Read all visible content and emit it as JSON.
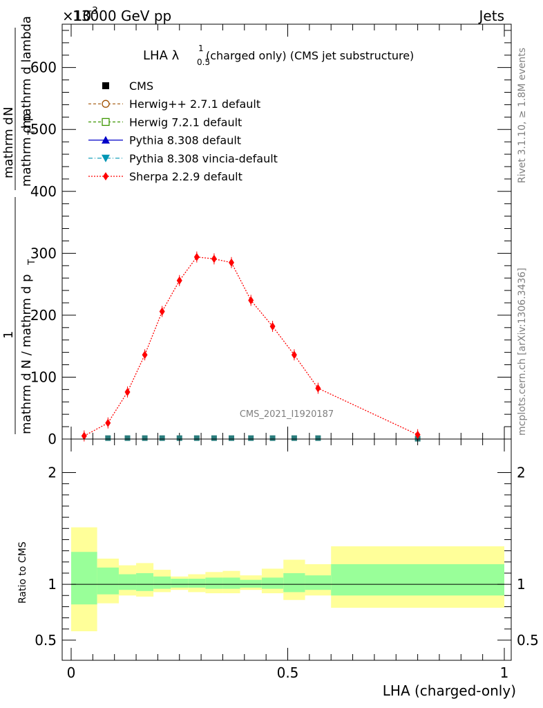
{
  "header": {
    "left": "13000 GeV pp",
    "right": "Jets",
    "exponent": "×10",
    "exponent_power": "-3"
  },
  "side_text": {
    "rivet": "Rivet 3.1.10, ≥ 1.8M events",
    "mcplots": "mcplots.cern.ch [arXiv:1306.3436]"
  },
  "watermark": "CMS_2021_I1920187",
  "colors": {
    "cms": "#000000",
    "herwig_pp": "#a05000",
    "herwig7": "#3c9600",
    "pythia": "#0000c8",
    "vincia": "#0096b4",
    "sherpa": "#ff0000",
    "band_stat": "#99ff99",
    "band_total": "#ffff99"
  },
  "chart_data": [
    {
      "type": "line",
      "title": "LHA λ",
      "title_super": "1",
      "title_sub": "0.5",
      "title_rest": " (charged only) (CMS jet substructure)",
      "xlabel": "LHA (charged-only)",
      "ylabel_frac_one": "1",
      "ylabel_denominator": "mathrm d N / mathrm d p",
      "ylabel_denominator_sub": "T",
      "ylabel_numerator_top": "mathrm d",
      "ylabel_numerator_N": "N",
      "ylabel_numerator_mid": "mathrm d p",
      "ylabel_numerator_T": "T",
      "ylabel_numerator_end": " mathrm d lambda",
      "xlim": [
        0,
        1
      ],
      "ylim": [
        0,
        670
      ],
      "y_scale_note": "values in units of 1e-3",
      "y_ticks": [
        "0",
        "100",
        "200",
        "300",
        "400",
        "500",
        "600"
      ],
      "x_ticks": [
        "0",
        "0.5",
        "1"
      ],
      "legend_position": "top-left",
      "legend": [
        {
          "name": "CMS",
          "marker": "square-filled",
          "color": "#000000"
        },
        {
          "name": "Herwig++ 2.7.1 default",
          "marker": "circle-open",
          "color": "#a05000"
        },
        {
          "name": "Herwig 7.2.1 default",
          "marker": "square-open",
          "color": "#3c9600"
        },
        {
          "name": "Pythia 8.308 default",
          "marker": "triangle-up",
          "color": "#0000c8"
        },
        {
          "name": "Pythia 8.308 vincia-default",
          "marker": "triangle-down",
          "color": "#0096b4"
        },
        {
          "name": "Sherpa 2.2.9 default",
          "marker": "diamond",
          "color": "#ff0000"
        }
      ],
      "x": [
        0.03,
        0.085,
        0.13,
        0.17,
        0.21,
        0.25,
        0.29,
        0.33,
        0.37,
        0.415,
        0.465,
        0.515,
        0.57,
        0.8
      ],
      "series": [
        {
          "name": "Sherpa 2.2.9 default",
          "values": [
            5,
            26,
            76,
            136,
            206,
            256,
            294,
            291,
            285,
            224,
            182,
            136,
            82,
            7
          ]
        },
        {
          "name": "CMS",
          "values": [
            0.5,
            1.5,
            1.5,
            1.5,
            1.5,
            1.5,
            1.5,
            1.5,
            1.5,
            1.5,
            1.5,
            1.5,
            1.5,
            0.5
          ]
        }
      ]
    },
    {
      "type": "area",
      "ylabel": "Ratio to CMS",
      "xlabel": "LHA (charged-only)",
      "xlim": [
        0,
        1
      ],
      "ylim": [
        0.32,
        2.3
      ],
      "y_ticks": [
        "0.5",
        "1",
        "2"
      ],
      "x_ticks": [
        "0",
        "0.5",
        "1"
      ],
      "bins": [
        {
          "x0": 0.0,
          "x1": 0.06,
          "total": [
            0.58,
            1.51
          ],
          "stat": [
            0.82,
            1.29
          ]
        },
        {
          "x0": 0.06,
          "x1": 0.11,
          "total": [
            0.83,
            1.23
          ],
          "stat": [
            0.91,
            1.15
          ]
        },
        {
          "x0": 0.11,
          "x1": 0.15,
          "total": [
            0.9,
            1.17
          ],
          "stat": [
            0.95,
            1.09
          ]
        },
        {
          "x0": 0.15,
          "x1": 0.19,
          "total": [
            0.89,
            1.19
          ],
          "stat": [
            0.94,
            1.1
          ]
        },
        {
          "x0": 0.19,
          "x1": 0.23,
          "total": [
            0.93,
            1.13
          ],
          "stat": [
            0.96,
            1.07
          ]
        },
        {
          "x0": 0.23,
          "x1": 0.27,
          "total": [
            0.95,
            1.07
          ],
          "stat": [
            0.97,
            1.05
          ]
        },
        {
          "x0": 0.27,
          "x1": 0.31,
          "total": [
            0.93,
            1.09
          ],
          "stat": [
            0.97,
            1.05
          ]
        },
        {
          "x0": 0.31,
          "x1": 0.35,
          "total": [
            0.92,
            1.11
          ],
          "stat": [
            0.96,
            1.06
          ]
        },
        {
          "x0": 0.35,
          "x1": 0.39,
          "total": [
            0.92,
            1.12
          ],
          "stat": [
            0.96,
            1.06
          ]
        },
        {
          "x0": 0.39,
          "x1": 0.44,
          "total": [
            0.95,
            1.08
          ],
          "stat": [
            0.97,
            1.04
          ]
        },
        {
          "x0": 0.44,
          "x1": 0.49,
          "total": [
            0.92,
            1.14
          ],
          "stat": [
            0.96,
            1.06
          ]
        },
        {
          "x0": 0.49,
          "x1": 0.54,
          "total": [
            0.86,
            1.22
          ],
          "stat": [
            0.93,
            1.1
          ]
        },
        {
          "x0": 0.54,
          "x1": 0.6,
          "total": [
            0.9,
            1.18
          ],
          "stat": [
            0.95,
            1.08
          ]
        },
        {
          "x0": 0.6,
          "x1": 1.0,
          "total": [
            0.79,
            1.34
          ],
          "stat": [
            0.9,
            1.18
          ]
        }
      ],
      "reference": 1
    }
  ]
}
